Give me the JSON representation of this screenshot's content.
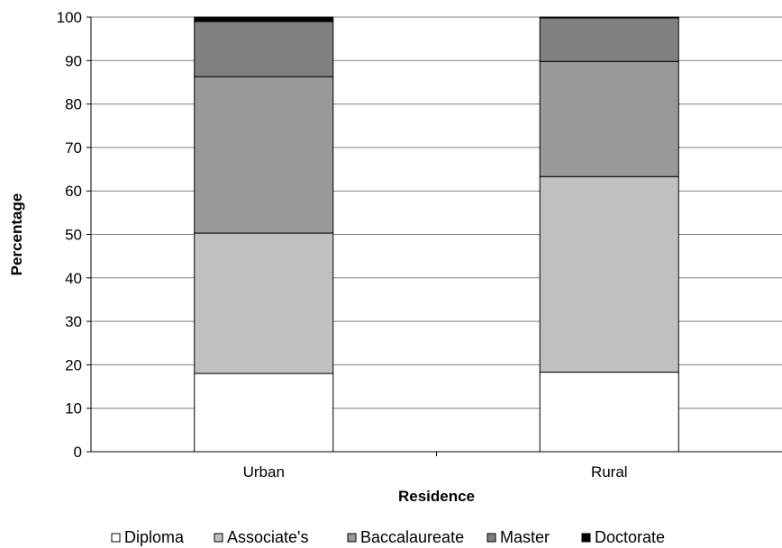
{
  "chart_data": {
    "type": "bar",
    "stacked": true,
    "categories": [
      "Urban",
      "Rural"
    ],
    "series": [
      {
        "name": "Diploma",
        "color": "#ffffff",
        "values": [
          18,
          18.3
        ]
      },
      {
        "name": "Associate's",
        "color": "#c0c0c0",
        "values": [
          32.3,
          45
        ]
      },
      {
        "name": "Baccalaureate",
        "color": "#979a98",
        "values": [
          36,
          26.5
        ]
      },
      {
        "name": "Master",
        "color": "#808080",
        "values": [
          12.7,
          10
        ]
      },
      {
        "name": "Doctorate",
        "color": "#000000",
        "values": [
          1,
          0.2
        ]
      }
    ],
    "title": "",
    "xlabel": "Residence",
    "ylabel": "Percentage",
    "ylim": [
      0,
      100
    ],
    "yticks": [
      "0",
      "10",
      "20",
      "30",
      "40",
      "50",
      "60",
      "70",
      "80",
      "90",
      "100"
    ],
    "grid": true,
    "legend_position": "bottom"
  }
}
